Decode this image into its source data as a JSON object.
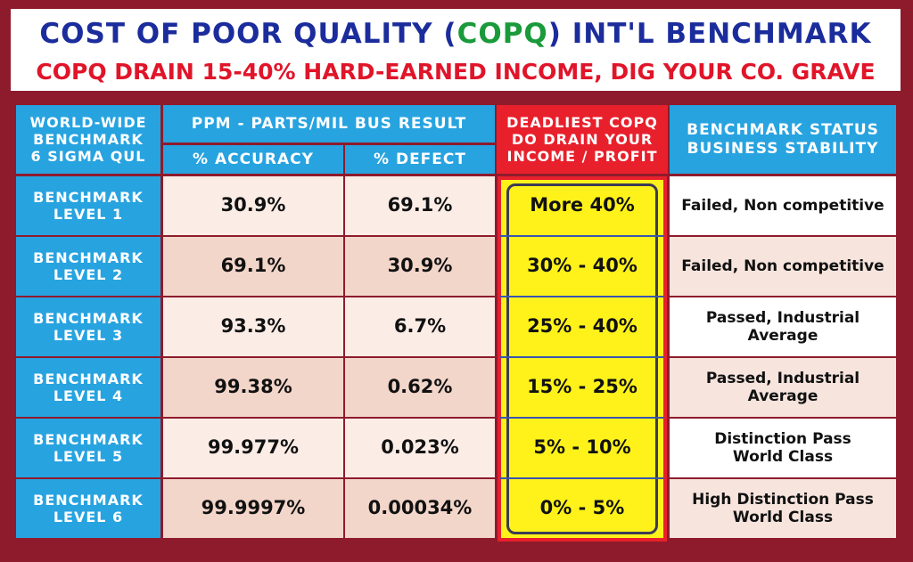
{
  "header": {
    "title": [
      "COST OF POOR QUALITY (",
      "COPQ",
      ") INT'L BENCHMARK"
    ],
    "subtitle": "COPQ DRAIN 15-40% HARD-EARNED INCOME, DIG YOUR CO. GRAVE"
  },
  "table": {
    "headers": {
      "benchmark": [
        "WORLD-WIDE",
        "BENCHMARK",
        "6 SIGMA QUL"
      ],
      "ppm": "PPM - PARTS/MIL BUS RESULT",
      "accuracy": "% ACCURACY",
      "defect": "% DEFECT",
      "copq": [
        "DEADLIEST COPQ",
        "DO DRAIN YOUR",
        "INCOME / PROFIT"
      ],
      "status": [
        "BENCHMARK STATUS",
        "BUSINESS  STABILITY"
      ]
    },
    "rows": [
      {
        "level": [
          "BENCHMARK",
          "LEVEL 1"
        ],
        "accuracy": "30.9%",
        "defect": "69.1%",
        "copq": "More 40%",
        "status": [
          "Failed, Non competitive"
        ]
      },
      {
        "level": [
          "BENCHMARK",
          "LEVEL 2"
        ],
        "accuracy": "69.1%",
        "defect": "30.9%",
        "copq": "30% - 40%",
        "status": [
          "Failed, Non competitive"
        ]
      },
      {
        "level": [
          "BENCHMARK",
          "LEVEL 3"
        ],
        "accuracy": "93.3%",
        "defect": "6.7%",
        "copq": "25% - 40%",
        "status": [
          "Passed, Industrial Average"
        ]
      },
      {
        "level": [
          "BENCHMARK",
          "LEVEL 4"
        ],
        "accuracy": "99.38%",
        "defect": "0.62%",
        "copq": "15% - 25%",
        "status": [
          "Passed, Industrial Average"
        ]
      },
      {
        "level": [
          "BENCHMARK",
          "LEVEL 5"
        ],
        "accuracy": "99.977%",
        "defect": "0.023%",
        "copq": "5% - 10%",
        "status": [
          "Distinction Pass",
          "World Class"
        ]
      },
      {
        "level": [
          "BENCHMARK",
          "LEVEL 6"
        ],
        "accuracy": "99.9997%",
        "defect": "0.00034%",
        "copq": "0% - 5%",
        "status": [
          "High Distinction Pass",
          "World Class"
        ]
      }
    ]
  }
}
